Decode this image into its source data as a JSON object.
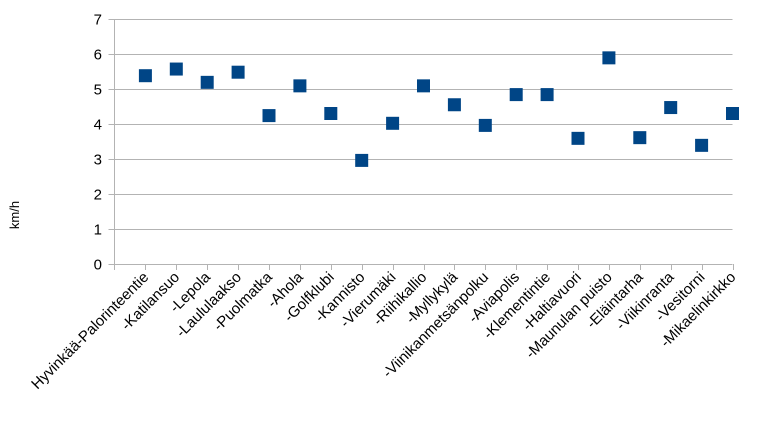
{
  "chart_data": {
    "type": "scatter",
    "title": "",
    "xlabel": "",
    "ylabel": "km/h",
    "ylim": [
      0,
      7
    ],
    "yticks": [
      "0",
      "1",
      "2",
      "3",
      "4",
      "5",
      "6",
      "7"
    ],
    "grid": true,
    "legend": "none",
    "marker_color": "#004586",
    "marker_shape": "square",
    "categories": [
      "Hyvinkää-Palorinteentie",
      "-Katilansuo",
      "-Lepola",
      "-Laululaakso",
      "-Puolmatka",
      "-Ahola",
      "-Golfklubi",
      "-Kannisto",
      "-Vierumäki",
      "-Riihikallio",
      "-Myllykylä",
      "-Viinikanmetsänpolku",
      "-Aviapolis",
      "-Klementintie",
      "-Haltiavuori",
      "-Maunulan puisto",
      "-Eläintarha",
      "-Viikinranta",
      "-Vesitorni",
      "-Mikaelinkirkko"
    ],
    "values": [
      5.38,
      5.57,
      5.19,
      5.48,
      4.24,
      5.09,
      4.3,
      2.96,
      4.02,
      5.09,
      4.55,
      3.96,
      4.84,
      4.84,
      3.59,
      5.89,
      3.61,
      4.47,
      3.39,
      4.3
    ]
  }
}
